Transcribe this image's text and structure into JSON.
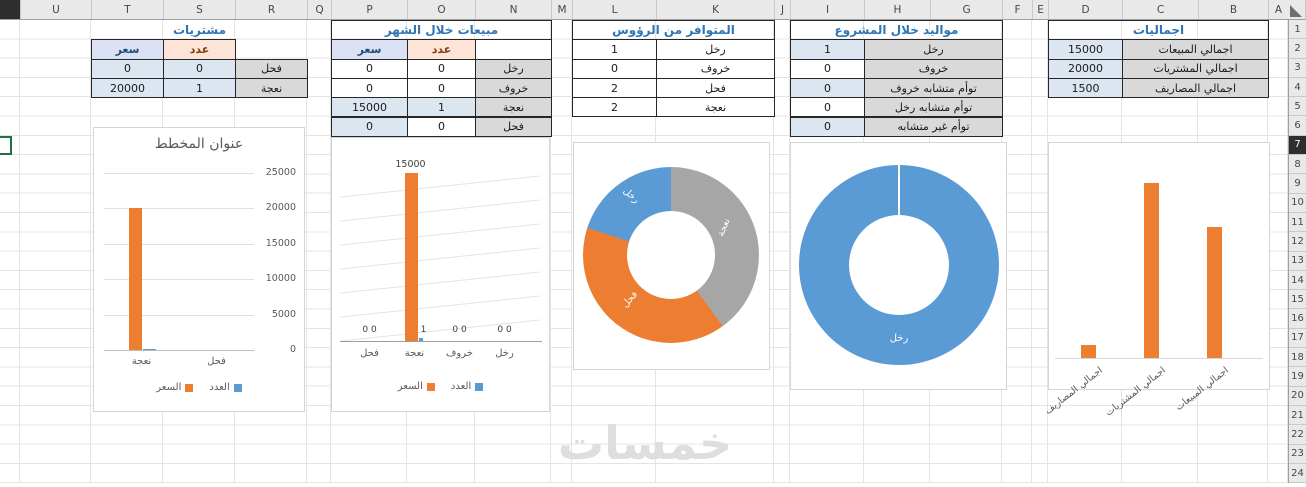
{
  "sheet": {
    "watermark": "خمسات",
    "columns": [
      "U",
      "T",
      "S",
      "R",
      "Q",
      "P",
      "O",
      "N",
      "M",
      "L",
      "K",
      "J",
      "I",
      "H",
      "G",
      "F",
      "E",
      "D",
      "C",
      "B",
      "A"
    ],
    "rows": [
      "1",
      "2",
      "3",
      "4",
      "5",
      "6",
      "7",
      "8",
      "9",
      "10",
      "11",
      "12",
      "13",
      "14",
      "15",
      "16",
      "17",
      "18",
      "19",
      "20",
      "21",
      "22",
      "23",
      "24"
    ],
    "active_row": "7"
  },
  "tables": {
    "purchases": {
      "title": "مشتريات",
      "col_headers": {
        "price": "سعر",
        "count": "عدد"
      },
      "rows": [
        {
          "label": "فحل",
          "count": "0",
          "price": "0"
        },
        {
          "label": "نعجة",
          "count": "1",
          "price": "20000"
        }
      ]
    },
    "monthly_sales": {
      "title": "مبيعات خلال الشهر",
      "col_headers": {
        "price": "سعر",
        "count": "عدد"
      },
      "rows": [
        {
          "label": "رخل",
          "count": "0",
          "price": "0"
        },
        {
          "label": "خروف",
          "count": "0",
          "price": "0"
        },
        {
          "label": "نعجة",
          "count": "1",
          "price": "15000"
        },
        {
          "label": "فحل",
          "count": "0",
          "price": "0"
        }
      ]
    },
    "available": {
      "title": "المتوافر من الرؤوس",
      "rows": [
        {
          "label": "رخل",
          "value": "1"
        },
        {
          "label": "خروف",
          "value": "0"
        },
        {
          "label": "فحل",
          "value": "2"
        },
        {
          "label": "نعجة",
          "value": "2"
        }
      ]
    },
    "births": {
      "title": "مواليد خلال المشروع",
      "rows": [
        {
          "label": "رخل",
          "value": "1"
        },
        {
          "label": "خروف",
          "value": "0"
        },
        {
          "label": "توأم متشابه خروف",
          "value": "0"
        },
        {
          "label": "توأم متشابه رخل",
          "value": "0"
        },
        {
          "label": "توأم غير متشابه",
          "value": "0"
        }
      ]
    },
    "totals": {
      "title": "اجماليات",
      "rows": [
        {
          "label": "اجمالي المبيعات",
          "value": "15000"
        },
        {
          "label": "اجمالي المشتريات",
          "value": "20000"
        },
        {
          "label": "اجمالي المصاريف",
          "value": "1500"
        }
      ]
    }
  },
  "chart_data": [
    {
      "id": "purchases-chart",
      "type": "bar",
      "title": "عنوان المخطط",
      "categories": [
        "فحل",
        "نعجة"
      ],
      "series": [
        {
          "name": "العدد",
          "color": "#5b9bd5",
          "values": [
            0,
            1
          ]
        },
        {
          "name": "السعر",
          "color": "#ed7d31",
          "values": [
            0,
            20000
          ]
        }
      ],
      "ylim": [
        0,
        25000
      ],
      "yticks": [
        0,
        5000,
        10000,
        15000,
        20000,
        25000
      ],
      "legend_position": "bottom",
      "gridlines": true
    },
    {
      "id": "monthly-sales-chart",
      "type": "bar",
      "title": "",
      "categories": [
        "رخل",
        "خروف",
        "نعجة",
        "فحل"
      ],
      "series": [
        {
          "name": "العدد",
          "color": "#5b9bd5",
          "values": [
            0,
            0,
            1,
            0
          ]
        },
        {
          "name": "السعر",
          "color": "#ed7d31",
          "values": [
            0,
            0,
            15000,
            0
          ]
        }
      ],
      "ylim": [
        0,
        15000
      ],
      "data_labels": true,
      "legend_position": "bottom"
    },
    {
      "id": "available-donut-chart",
      "type": "pie",
      "labels": [
        "رخل",
        "خروف",
        "فحل",
        "نعجة"
      ],
      "values": [
        1,
        0,
        2,
        2
      ],
      "colors": [
        "#5b9bd5",
        "#ffc000",
        "#ed7d31",
        "#a6a6a6"
      ],
      "shown_labels": [
        "رخل",
        "فحل",
        "نعجة"
      ]
    },
    {
      "id": "births-donut-chart",
      "type": "pie",
      "labels": [
        "رخل",
        "خروف",
        "توأم متشابه خروف",
        "توأم متشابه رخل",
        "توأم غير متشابه"
      ],
      "values": [
        1,
        0,
        0,
        0,
        0
      ],
      "colors": [
        "#5b9bd5",
        "#ed7d31",
        "#a6a6a6",
        "#ffc000",
        "#4472c4"
      ],
      "shown_labels": [
        "رخل"
      ]
    },
    {
      "id": "totals-chart",
      "type": "bar",
      "title": "",
      "categories": [
        "اجمالي المبيعات",
        "اجمالي المشتريات",
        "اجمالي المصاريف"
      ],
      "values": [
        15000,
        20000,
        1500
      ],
      "bar_color": "#ed7d31",
      "ylim": [
        0,
        20000
      ]
    }
  ],
  "colors": {
    "accent_blue": "#5b9bd5",
    "accent_orange": "#ed7d31",
    "accent_gray": "#a6a6a6",
    "title_blue": "#2e75b6",
    "selection_green": "#1e7145"
  }
}
